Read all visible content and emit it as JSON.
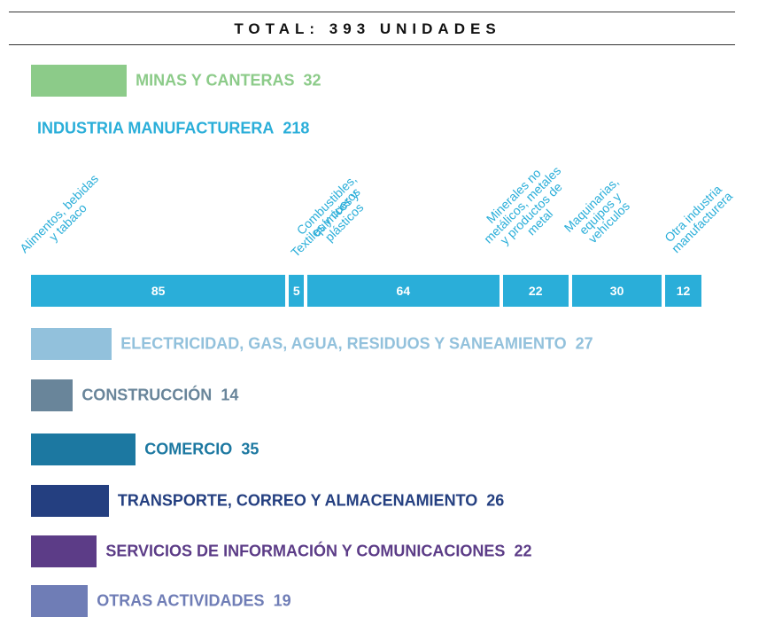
{
  "chart_data": [
    {
      "type": "bar",
      "title": "TOTAL: 393 UNIDADES",
      "categories": [
        "MINAS Y CANTERAS",
        "INDUSTRIA MANUFACTURERA",
        "ELECTRICIDAD, GAS, AGUA, RESIDUOS Y SANEAMIENTO",
        "CONSTRUCCIÓN",
        "COMERCIO",
        "TRANSPORTE, CORREO Y ALMACENAMIENTO",
        "SERVICIOS DE INFORMACIÓN Y COMUNICACIONES",
        "OTRAS ACTIVIDADES"
      ],
      "values": [
        32,
        218,
        27,
        14,
        35,
        26,
        22,
        19
      ],
      "colors": [
        "#8ccb89",
        "#2aaed9",
        "#92c1dc",
        "#69859a",
        "#1c78a1",
        "#243f80",
        "#5c3c87",
        "#6f7db6"
      ]
    },
    {
      "type": "segments",
      "categories": [
        "Alimentos, bebidas y tabaco",
        "Textiles y cueros",
        "Combustibles, químicos y plásticos",
        "Minerales no metálicos, metales y productos de metal",
        "Maquinarias, equipos y vehículos",
        "Otra industria manufacturera"
      ],
      "values": [
        85,
        5,
        64,
        22,
        30,
        12
      ],
      "color": "#2aaed9"
    }
  ]
}
